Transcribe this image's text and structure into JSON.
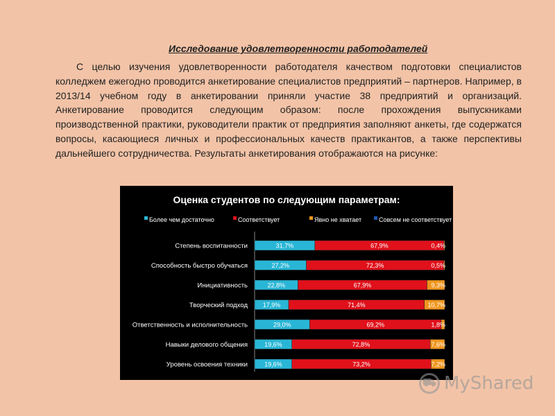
{
  "text": {
    "heading": "Исследование удовлетворенности работодателей",
    "paragraph": "С целью изучения удовлетворенности работодателя качеством подготовки специалистов колледжем ежегодно проводится анкетирование специалистов предприятий – партнеров. Например, в 2013/14 учебном году в анкетировании приняли участие 38 предприятий и организаций. Анкетирование проводится следующим образом: после прохождения выпускниками производственной практики, руководители практик от предприятия заполняют анкеты, где содержатся вопросы, касающиеся личных и профессиональных качеств практикантов, а также перспективы дальнейшего сотрудничества. Результаты анкетирования отображаются на рисунке:"
  },
  "watermark": {
    "icon": "shopping-cart-icon",
    "text": "MyShared"
  },
  "colors": {
    "background": "#f2c3a7",
    "chart_bg": "#000000",
    "series": [
      "#29b6d6",
      "#e0111b",
      "#f0961e",
      "#1f56b3"
    ]
  },
  "chart_data": {
    "type": "bar",
    "orientation": "horizontal",
    "stacked": true,
    "title": "Оценка студентов по следующим параметрам:",
    "legend_position": "top",
    "categories": [
      "Степень воспитанности",
      "Способность быстро обучаться",
      "Инициативность",
      "Творческий подход",
      "Ответственность и исполнительность",
      "Навыки делового общения",
      "Уровень освоения техники"
    ],
    "series": [
      {
        "name": "Более чем достаточно",
        "values": [
          31.7,
          27.2,
          22.8,
          17.9,
          29.0,
          19.6,
          19.6
        ],
        "labels": [
          "31,7%",
          "27,2%",
          "22,8%",
          "17,9%",
          "29,0%",
          "19,6%",
          "19,6%"
        ]
      },
      {
        "name": "Соответствует",
        "values": [
          67.9,
          72.3,
          67.9,
          71.4,
          69.2,
          72.8,
          73.2
        ],
        "labels": [
          "67,9%",
          "72,3%",
          "67,9%",
          "71,4%",
          "69,2%",
          "72,8%",
          "73,2%"
        ]
      },
      {
        "name": "Явно не хватает",
        "values": [
          0.4,
          0.5,
          9.3,
          10.7,
          1.8,
          7.6,
          7.2
        ],
        "labels": [
          "0,4%",
          "0,5%",
          "9,3%",
          "10,7%",
          "1,8%",
          "7,6%",
          "7,2%"
        ]
      },
      {
        "name": "Совсем не соответствует",
        "values": [
          0,
          0,
          0,
          0,
          0,
          0,
          0
        ],
        "labels": [
          "",
          "",
          "",
          "",
          "",
          "",
          ""
        ]
      }
    ],
    "xlim": [
      0,
      100
    ],
    "grid": false
  }
}
